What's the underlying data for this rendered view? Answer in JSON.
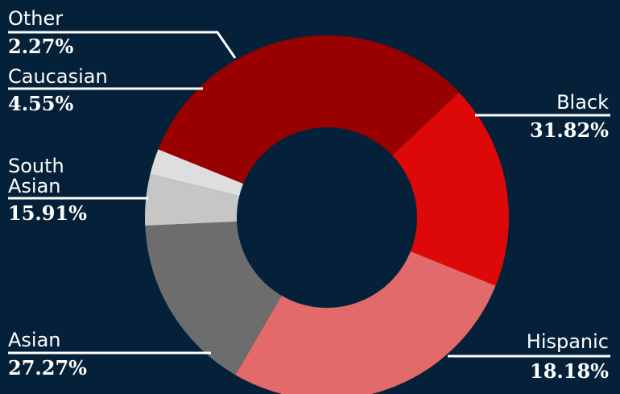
{
  "chart_data": {
    "type": "pie",
    "donut": true,
    "slices": [
      {
        "label": "Black",
        "value_label": "31.82%",
        "value": 31.82,
        "color": "#990000"
      },
      {
        "label": "Hispanic",
        "value_label": "18.18%",
        "value": 18.18,
        "color": "#dd0808"
      },
      {
        "label": "Asian",
        "value_label": "27.27%",
        "value": 27.27,
        "color": "#e26a6a"
      },
      {
        "label": "South Asian",
        "value_label": "15.91%",
        "value": 15.91,
        "color": "#6d6d6d"
      },
      {
        "label": "Caucasian",
        "value_label": "4.55%",
        "value": 4.55,
        "color": "#c6c6c6"
      },
      {
        "label": "Other",
        "value_label": "2.27%",
        "value": 2.27,
        "color": "#dedede"
      }
    ]
  }
}
